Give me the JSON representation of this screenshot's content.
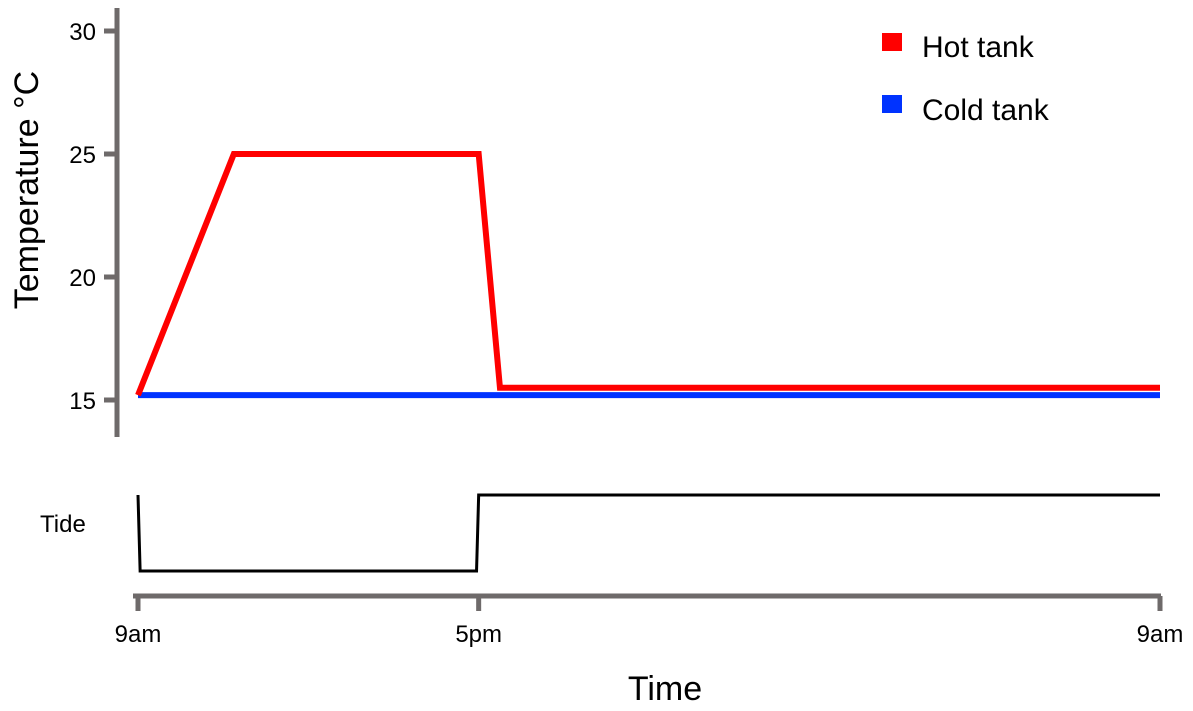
{
  "chart_data": [
    {
      "type": "line",
      "ylabel": "Temperature °C",
      "ylim": [
        13.5,
        31
      ],
      "yticks": [
        15,
        20,
        25,
        30
      ],
      "x_unit": "hours after 9am",
      "xlim": [
        0,
        24
      ],
      "legend_position": "top-right",
      "grid": false,
      "series": [
        {
          "name": "Hot tank",
          "color": "#ff0000",
          "x": [
            0,
            2.25,
            8,
            8.5,
            24
          ],
          "y": [
            15.2,
            25,
            25,
            15.5,
            15.5
          ]
        },
        {
          "name": "Cold tank",
          "color": "#0033ff",
          "x": [
            0,
            24
          ],
          "y": [
            15.2,
            15.2
          ]
        }
      ]
    },
    {
      "type": "line",
      "ylabel": "Tide",
      "xlabel": "Time",
      "xlim": [
        0,
        24
      ],
      "xticks": [
        {
          "value": 0,
          "label": "9am"
        },
        {
          "value": 8,
          "label": "5pm"
        },
        {
          "value": 24,
          "label": "9am"
        }
      ],
      "series": [
        {
          "name": "Tide",
          "color": "#000000",
          "x": [
            0,
            0.05,
            7.95,
            8.0,
            24
          ],
          "y": [
            1,
            0,
            0,
            1,
            1
          ]
        }
      ]
    }
  ]
}
